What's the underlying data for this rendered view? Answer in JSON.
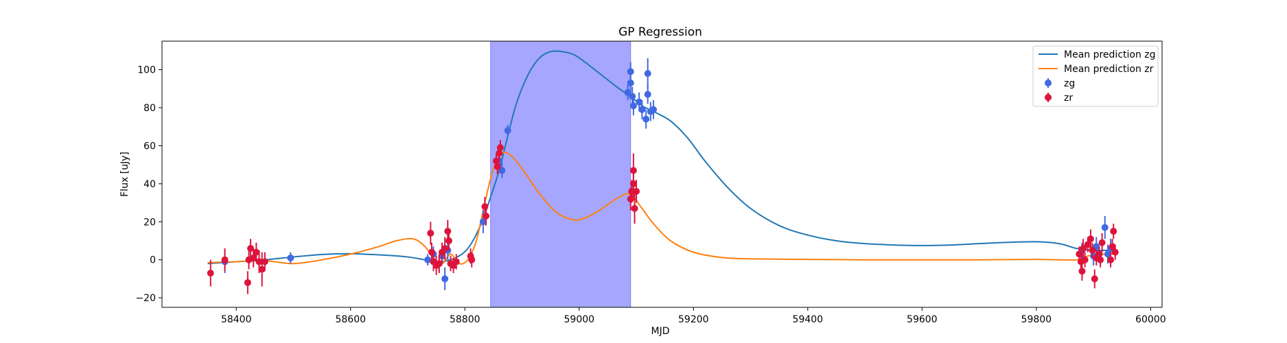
{
  "chart_data": {
    "type": "scatter",
    "title": "GP Regression",
    "xlabel": "MJD",
    "ylabel": "Flux [uJy]",
    "xlim": [
      58270,
      60020
    ],
    "ylim": [
      -25,
      115
    ],
    "xticks": [
      58400,
      58600,
      58800,
      59000,
      59200,
      59400,
      59600,
      59800,
      60000
    ],
    "yticks": [
      -20,
      0,
      20,
      40,
      60,
      80,
      100
    ],
    "grid": false,
    "legend_position": "top-right",
    "shaded_region": {
      "x_start": 58845,
      "x_end": 59090,
      "color": "#a6a6ff"
    },
    "series": [
      {
        "name": "Mean prediction zg",
        "kind": "line",
        "color": "#1f77b4",
        "x": [
          58350,
          58400,
          58450,
          58500,
          58550,
          58600,
          58650,
          58700,
          58730,
          58760,
          58790,
          58810,
          58830,
          58845,
          58860,
          58875,
          58890,
          58910,
          58930,
          58950,
          58970,
          58990,
          59010,
          59040,
          59070,
          59090,
          59110,
          59130,
          59160,
          59190,
          59220,
          59260,
          59300,
          59350,
          59400,
          59450,
          59500,
          59550,
          59600,
          59650,
          59700,
          59750,
          59800,
          59840,
          59870,
          59900,
          59935
        ],
        "y": [
          -2,
          -1,
          0,
          1.5,
          2.8,
          3.2,
          2.6,
          1.5,
          0,
          -1,
          2,
          8,
          20,
          33,
          47,
          65,
          82,
          97,
          106,
          109.5,
          109.5,
          108,
          104,
          97,
          90,
          86,
          81,
          78,
          73,
          64,
          52,
          38,
          27,
          18,
          13,
          10,
          8.5,
          7.8,
          7.5,
          7.8,
          8.5,
          9.2,
          9.5,
          8.5,
          6,
          5,
          5
        ]
      },
      {
        "name": "Mean prediction zr",
        "kind": "line",
        "color": "#ff7f0e",
        "x": [
          58350,
          58400,
          58450,
          58500,
          58550,
          58600,
          58650,
          58680,
          58710,
          58730,
          58745,
          58760,
          58775,
          58790,
          58805,
          58820,
          58835,
          58850,
          58865,
          58880,
          58900,
          58930,
          58960,
          58990,
          59010,
          59030,
          59050,
          59070,
          59090,
          59110,
          59130,
          59160,
          59200,
          59250,
          59300,
          59400,
          59500,
          59600,
          59700,
          59800,
          59870,
          59890,
          59910,
          59935
        ],
        "y": [
          -1.5,
          -1,
          -0.5,
          -2,
          0,
          3,
          7,
          10,
          11,
          7,
          1,
          -2,
          3,
          -2,
          0,
          10,
          30,
          48,
          56,
          55,
          48,
          35,
          25,
          21,
          22,
          25,
          29,
          33,
          34.5,
          27,
          19,
          10,
          4,
          1.2,
          0.5,
          0.2,
          0,
          0,
          0,
          0.2,
          0,
          2,
          3,
          3
        ]
      },
      {
        "name": "zg",
        "kind": "errorbar",
        "color": "#4169e1",
        "points": [
          {
            "x": 58380,
            "y": -1,
            "err": 6
          },
          {
            "x": 58495,
            "y": 1,
            "err": 3
          },
          {
            "x": 58735,
            "y": 0,
            "err": 3
          },
          {
            "x": 58745,
            "y": 3,
            "err": 4
          },
          {
            "x": 58755,
            "y": -2,
            "err": 4
          },
          {
            "x": 58760,
            "y": 2,
            "err": 4
          },
          {
            "x": 58765,
            "y": -10,
            "err": 6
          },
          {
            "x": 58770,
            "y": 5,
            "err": 5
          },
          {
            "x": 58832,
            "y": 20,
            "err": 6
          },
          {
            "x": 58860,
            "y": 52,
            "err": 4
          },
          {
            "x": 58865,
            "y": 47,
            "err": 4
          },
          {
            "x": 58875,
            "y": 68,
            "err": 3
          },
          {
            "x": 59085,
            "y": 88,
            "err": 4
          },
          {
            "x": 59090,
            "y": 93,
            "err": 5
          },
          {
            "x": 59090,
            "y": 99,
            "err": 5
          },
          {
            "x": 59093,
            "y": 86,
            "err": 5
          },
          {
            "x": 59095,
            "y": 81,
            "err": 5
          },
          {
            "x": 59105,
            "y": 83,
            "err": 5
          },
          {
            "x": 59110,
            "y": 79,
            "err": 5
          },
          {
            "x": 59117,
            "y": 74,
            "err": 5
          },
          {
            "x": 59120,
            "y": 87,
            "err": 5
          },
          {
            "x": 59120,
            "y": 98,
            "err": 8
          },
          {
            "x": 59125,
            "y": 78,
            "err": 5
          },
          {
            "x": 59130,
            "y": 79,
            "err": 5
          },
          {
            "x": 59880,
            "y": 5,
            "err": 4
          },
          {
            "x": 59900,
            "y": 2,
            "err": 5
          },
          {
            "x": 59905,
            "y": 7,
            "err": 5
          },
          {
            "x": 59920,
            "y": 17,
            "err": 6
          },
          {
            "x": 59925,
            "y": 3,
            "err": 5
          },
          {
            "x": 59930,
            "y": 6,
            "err": 5
          }
        ]
      },
      {
        "name": "zr",
        "kind": "errorbar",
        "color": "#dc143c",
        "points": [
          {
            "x": 58355,
            "y": -7,
            "err": 7
          },
          {
            "x": 58380,
            "y": 0,
            "err": 6
          },
          {
            "x": 58420,
            "y": -12,
            "err": 6
          },
          {
            "x": 58422,
            "y": 0,
            "err": 5
          },
          {
            "x": 58425,
            "y": 6,
            "err": 5
          },
          {
            "x": 58430,
            "y": 1,
            "err": 5
          },
          {
            "x": 58435,
            "y": 4,
            "err": 5
          },
          {
            "x": 58440,
            "y": -1,
            "err": 6
          },
          {
            "x": 58445,
            "y": -5,
            "err": 9
          },
          {
            "x": 58450,
            "y": -1,
            "err": 5
          },
          {
            "x": 58740,
            "y": 14,
            "err": 6
          },
          {
            "x": 58742,
            "y": 4,
            "err": 5
          },
          {
            "x": 58745,
            "y": -1,
            "err": 5
          },
          {
            "x": 58750,
            "y": -3,
            "err": 5
          },
          {
            "x": 58755,
            "y": -2,
            "err": 5
          },
          {
            "x": 58760,
            "y": 4,
            "err": 5
          },
          {
            "x": 58765,
            "y": 6,
            "err": 6
          },
          {
            "x": 58770,
            "y": 15,
            "err": 6
          },
          {
            "x": 58772,
            "y": 10,
            "err": 5
          },
          {
            "x": 58775,
            "y": -2,
            "err": 4
          },
          {
            "x": 58780,
            "y": -3,
            "err": 4
          },
          {
            "x": 58785,
            "y": -1,
            "err": 4
          },
          {
            "x": 58810,
            "y": 2,
            "err": 4
          },
          {
            "x": 58812,
            "y": 0,
            "err": 4
          },
          {
            "x": 58835,
            "y": 28,
            "err": 5
          },
          {
            "x": 58837,
            "y": 23,
            "err": 5
          },
          {
            "x": 58855,
            "y": 52,
            "err": 4
          },
          {
            "x": 58857,
            "y": 49,
            "err": 4
          },
          {
            "x": 58860,
            "y": 56,
            "err": 4
          },
          {
            "x": 58862,
            "y": 59,
            "err": 4
          },
          {
            "x": 59090,
            "y": 32,
            "err": 6
          },
          {
            "x": 59092,
            "y": 36,
            "err": 6
          },
          {
            "x": 59095,
            "y": 40,
            "err": 7
          },
          {
            "x": 59095,
            "y": 47,
            "err": 9
          },
          {
            "x": 59097,
            "y": 27,
            "err": 8
          },
          {
            "x": 59100,
            "y": 36,
            "err": 6
          },
          {
            "x": 59875,
            "y": 3,
            "err": 4
          },
          {
            "x": 59878,
            "y": -1,
            "err": 4
          },
          {
            "x": 59880,
            "y": -6,
            "err": 5
          },
          {
            "x": 59882,
            "y": 6,
            "err": 5
          },
          {
            "x": 59885,
            "y": 0,
            "err": 4
          },
          {
            "x": 59890,
            "y": 8,
            "err": 4
          },
          {
            "x": 59895,
            "y": 11,
            "err": 5
          },
          {
            "x": 59898,
            "y": 5,
            "err": 4
          },
          {
            "x": 59902,
            "y": -10,
            "err": 5
          },
          {
            "x": 59905,
            "y": 1,
            "err": 4
          },
          {
            "x": 59910,
            "y": 3,
            "err": 4
          },
          {
            "x": 59912,
            "y": 0,
            "err": 4
          },
          {
            "x": 59915,
            "y": 9,
            "err": 5
          },
          {
            "x": 59930,
            "y": 0,
            "err": 4
          },
          {
            "x": 59933,
            "y": 7,
            "err": 4
          },
          {
            "x": 59935,
            "y": 15,
            "err": 4
          },
          {
            "x": 59938,
            "y": 4,
            "err": 4
          }
        ]
      }
    ]
  }
}
